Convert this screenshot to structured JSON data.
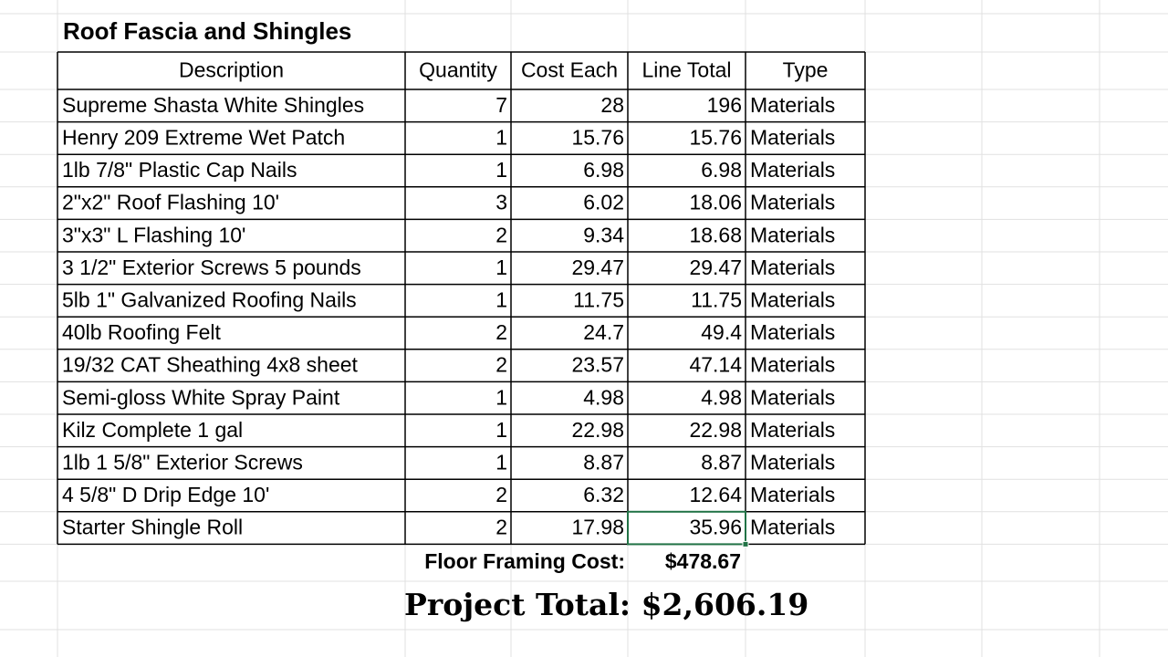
{
  "title": "Roof Fascia and Shingles",
  "table": {
    "header": [
      "Description",
      "Quantity",
      "Cost Each",
      "Line Total",
      "Type"
    ],
    "rows": [
      [
        "Supreme Shasta White Shingles",
        "7",
        "28",
        "196",
        "Materials"
      ],
      [
        "Henry 209 Extreme Wet Patch",
        "1",
        "15.76",
        "15.76",
        "Materials"
      ],
      [
        "1lb 7/8\" Plastic Cap Nails",
        "1",
        "6.98",
        "6.98",
        "Materials"
      ],
      [
        "2\"x2\" Roof Flashing 10'",
        "3",
        "6.02",
        "18.06",
        "Materials"
      ],
      [
        "3\"x3\" L Flashing 10'",
        "2",
        "9.34",
        "18.68",
        "Materials"
      ],
      [
        "3 1/2\" Exterior Screws 5 pounds",
        "1",
        "29.47",
        "29.47",
        "Materials"
      ],
      [
        "5lb 1\" Galvanized Roofing Nails",
        "1",
        "11.75",
        "11.75",
        "Materials"
      ],
      [
        "40lb Roofing Felt",
        "2",
        "24.7",
        "49.4",
        "Materials"
      ],
      [
        "19/32 CAT Sheathing 4x8 sheet",
        "2",
        "23.57",
        "47.14",
        "Materials"
      ],
      [
        "Semi-gloss White Spray Paint",
        "1",
        "4.98",
        "4.98",
        "Materials"
      ],
      [
        "Kilz Complete 1 gal",
        "1",
        "22.98",
        "22.98",
        "Materials"
      ],
      [
        "1lb 1 5/8\" Exterior Screws",
        "1",
        "8.87",
        "8.87",
        "Materials"
      ],
      [
        "4 5/8\" D Drip Edge 10'",
        "2",
        "6.32",
        "12.64",
        "Materials"
      ],
      [
        "Starter Shingle Roll",
        "2",
        "17.98",
        "35.96",
        "Materials"
      ]
    ]
  },
  "summary": {
    "label": "Floor Framing Cost:",
    "value": "$478.67"
  },
  "project_total": "Project Total: $2,606.19"
}
